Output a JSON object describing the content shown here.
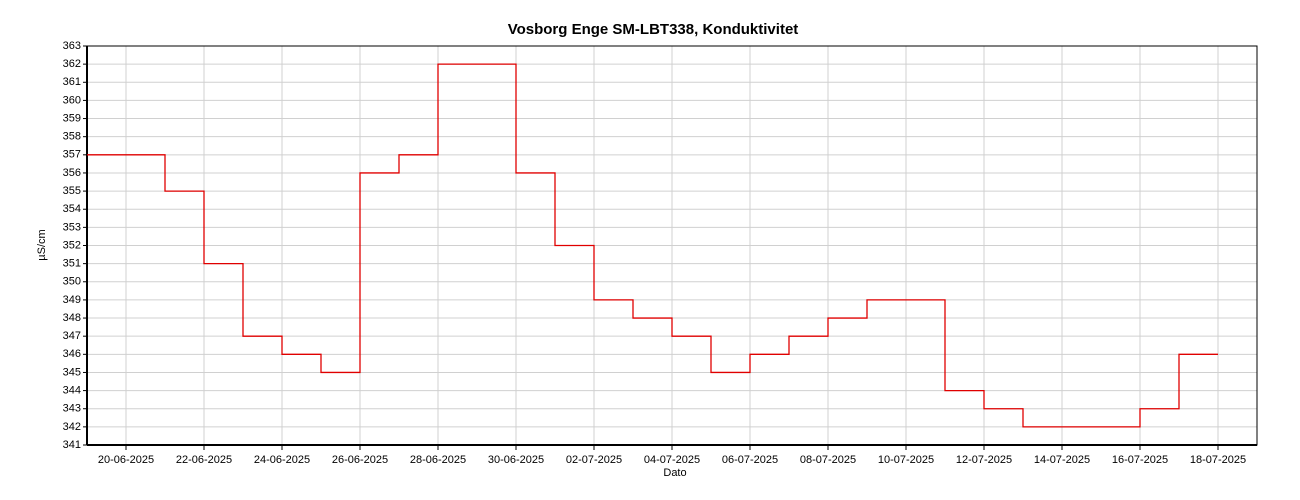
{
  "chart_data": {
    "type": "line",
    "title": "Vosborg Enge SM-LBT338, Konduktivitet",
    "x_label": "Dato",
    "y_label": "µS/cm",
    "x": [
      "19-06-2025",
      "20-06-2025",
      "21-06-2025",
      "22-06-2025",
      "23-06-2025",
      "24-06-2025",
      "25-06-2025",
      "26-06-2025",
      "27-06-2025",
      "28-06-2025",
      "29-06-2025",
      "30-06-2025",
      "01-07-2025",
      "02-07-2025",
      "03-07-2025",
      "04-07-2025",
      "05-07-2025",
      "06-07-2025",
      "07-07-2025",
      "08-07-2025",
      "09-07-2025",
      "10-07-2025",
      "11-07-2025",
      "12-07-2025",
      "13-07-2025",
      "14-07-2025",
      "15-07-2025",
      "16-07-2025",
      "17-07-2025",
      "18-07-2025"
    ],
    "series": [
      {
        "name": "Konduktivitet",
        "color": "#e00000",
        "values": [
          357,
          357,
          355,
          351,
          347,
          346,
          345,
          356,
          357,
          362,
          362,
          356,
          352,
          349,
          348,
          347,
          345,
          346,
          347,
          348,
          349,
          349,
          344,
          343,
          342,
          342,
          342,
          343,
          346,
          346
        ]
      }
    ],
    "xlim": [
      "19-06-2025",
      "19-07-2025"
    ],
    "xticks": [
      "20-06-2025",
      "22-06-2025",
      "24-06-2025",
      "26-06-2025",
      "28-06-2025",
      "30-06-2025",
      "02-07-2025",
      "04-07-2025",
      "06-07-2025",
      "08-07-2025",
      "10-07-2025",
      "12-07-2025",
      "14-07-2025",
      "16-07-2025",
      "18-07-2025"
    ],
    "ylim": [
      341,
      363
    ],
    "yticks": [
      341,
      342,
      343,
      344,
      345,
      346,
      347,
      348,
      349,
      350,
      351,
      352,
      353,
      354,
      355,
      356,
      357,
      358,
      359,
      360,
      361,
      362,
      363
    ],
    "grid": true,
    "step": true
  }
}
